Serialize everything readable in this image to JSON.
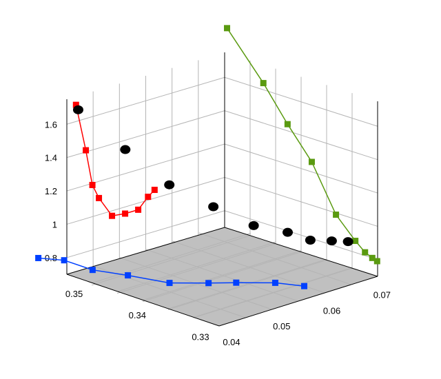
{
  "chart_data": {
    "type": "scatter",
    "title": "",
    "grid": true,
    "floor_color": "#c0c0c0",
    "axes": {
      "z": {
        "label": "",
        "range": [
          0.7,
          1.75
        ],
        "ticks": [
          {
            "value": 0.8,
            "label": "0.8"
          },
          {
            "value": 1.0,
            "label": "1"
          },
          {
            "value": 1.2,
            "label": "1.2"
          },
          {
            "value": 1.4,
            "label": "1.4"
          },
          {
            "value": 1.6,
            "label": "1.6"
          }
        ]
      },
      "left_floor": {
        "label": "",
        "ticks": [
          {
            "value": 0.35,
            "label": "0.35"
          },
          {
            "value": 0.34,
            "label": "0.34"
          },
          {
            "value": 0.33,
            "label": "0.33"
          }
        ]
      },
      "right_floor": {
        "label": "",
        "ticks": [
          {
            "value": 0.04,
            "label": "0.04"
          },
          {
            "value": 0.05,
            "label": "0.05"
          },
          {
            "value": 0.06,
            "label": "0.06"
          },
          {
            "value": 0.07,
            "label": "0.07"
          }
        ]
      }
    },
    "series": [
      {
        "kind": "projection-left-wall",
        "color": "#ff0000",
        "marker": "square",
        "points": [
          {
            "x": 0.3515,
            "z": 1.7
          },
          {
            "x": 0.35,
            "z": 1.41
          },
          {
            "x": 0.349,
            "z": 1.19
          },
          {
            "x": 0.348,
            "z": 1.1
          },
          {
            "x": 0.346,
            "z": 0.97
          },
          {
            "x": 0.344,
            "z": 0.96
          },
          {
            "x": 0.342,
            "z": 0.96
          },
          {
            "x": 0.3405,
            "z": 1.02
          },
          {
            "x": 0.3395,
            "z": 1.05
          }
        ]
      },
      {
        "kind": "projection-right-wall",
        "color": "#5a9a10",
        "marker": "square",
        "points": [
          {
            "y": 0.0405,
            "z": 1.9
          },
          {
            "y": 0.048,
            "z": 1.64
          },
          {
            "y": 0.053,
            "z": 1.44
          },
          {
            "y": 0.058,
            "z": 1.26
          },
          {
            "y": 0.063,
            "z": 0.99
          },
          {
            "y": 0.067,
            "z": 0.87
          },
          {
            "y": 0.069,
            "z": 0.82
          },
          {
            "y": 0.0705,
            "z": 0.8
          },
          {
            "y": 0.0715,
            "z": 0.79
          }
        ]
      },
      {
        "kind": "projection-floor",
        "color": "#0040ff",
        "marker": "square",
        "points": [
          {
            "x": 0.359,
            "y": 0.042
          },
          {
            "x": 0.3565,
            "y": 0.044
          },
          {
            "x": 0.352,
            "y": 0.044
          },
          {
            "x": 0.348,
            "y": 0.046
          },
          {
            "x": 0.343,
            "y": 0.048
          },
          {
            "x": 0.34,
            "y": 0.052
          },
          {
            "x": 0.338,
            "y": 0.055
          },
          {
            "x": 0.335,
            "y": 0.059
          },
          {
            "x": 0.332,
            "y": 0.061
          }
        ]
      },
      {
        "kind": "data-3d",
        "color": "#000000",
        "marker": "circle",
        "points": [
          {
            "x": 0.3515,
            "y": 0.0405,
            "z": 1.7
          },
          {
            "x": 0.35,
            "y": 0.048,
            "z": 1.41
          },
          {
            "x": 0.347,
            "y": 0.053,
            "z": 1.19
          },
          {
            "x": 0.344,
            "y": 0.058,
            "z": 1.05
          },
          {
            "x": 0.34,
            "y": 0.061,
            "z": 0.96
          },
          {
            "x": 0.337,
            "y": 0.064,
            "z": 0.93
          },
          {
            "x": 0.335,
            "y": 0.066,
            "z": 0.89
          },
          {
            "x": 0.334,
            "y": 0.069,
            "z": 0.87
          },
          {
            "x": 0.333,
            "y": 0.071,
            "z": 0.86
          }
        ]
      }
    ]
  }
}
